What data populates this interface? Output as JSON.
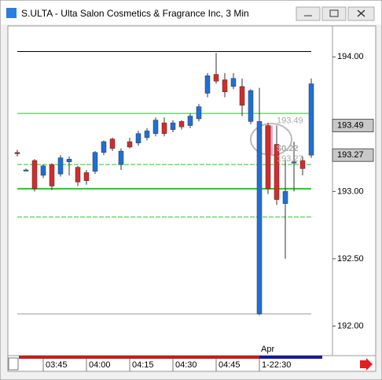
{
  "window_title": "S.ULTA - Ulta Salon Cosmetics & Fragrance Inc, 3 Min",
  "chart_data": {
    "type": "candlestick",
    "categories": [
      null,
      null,
      null,
      "03:45",
      null,
      null,
      null,
      null,
      "04:00",
      null,
      null,
      null,
      null,
      "04:15",
      null,
      null,
      null,
      null,
      "04:30",
      null,
      null,
      null,
      null,
      "04:45",
      null,
      null,
      null,
      null,
      "1-22:30",
      null,
      null,
      null,
      null,
      null,
      null
    ],
    "month_label": "Apr",
    "open": [
      193.29,
      193.16,
      193.23,
      193.12,
      193.2,
      193.13,
      193.22,
      193.18,
      193.14,
      193.15,
      193.29,
      193.39,
      193.2,
      193.37,
      193.36,
      193.4,
      193.43,
      193.51,
      193.46,
      193.52,
      193.49,
      193.54,
      193.73,
      193.87,
      193.83,
      193.78,
      193.78,
      193.52,
      192.09,
      193.49,
      193.35,
      192.91,
      193.22,
      193.23,
      193.27
    ],
    "high": [
      193.31,
      193.17,
      193.24,
      193.2,
      193.21,
      193.27,
      193.26,
      193.19,
      193.16,
      193.3,
      193.38,
      193.4,
      193.32,
      193.4,
      193.45,
      193.47,
      193.55,
      193.55,
      193.53,
      193.53,
      193.58,
      193.65,
      193.88,
      194.03,
      193.88,
      193.88,
      193.84,
      193.76,
      193.77,
      193.51,
      193.49,
      193.25,
      193.37,
      193.26,
      193.84
    ],
    "low": [
      193.26,
      193.15,
      193.0,
      193.1,
      193.01,
      193.11,
      193.12,
      193.04,
      193.05,
      193.13,
      193.27,
      193.3,
      193.16,
      193.32,
      193.34,
      193.38,
      193.41,
      193.41,
      193.44,
      193.46,
      193.47,
      193.52,
      193.7,
      193.8,
      193.7,
      193.76,
      193.56,
      193.5,
      192.08,
      192.98,
      192.9,
      192.5,
      193.0,
      193.12,
      193.25
    ],
    "close": [
      193.28,
      193.16,
      193.02,
      193.19,
      193.04,
      193.25,
      193.24,
      193.07,
      193.08,
      193.29,
      193.37,
      193.32,
      193.3,
      193.33,
      193.43,
      193.45,
      193.53,
      193.43,
      193.51,
      193.48,
      193.56,
      193.63,
      193.86,
      193.82,
      193.74,
      193.84,
      193.64,
      193.75,
      193.52,
      193.02,
      192.94,
      193.0,
      193.22,
      193.17,
      193.8
    ],
    "up_color": "#1e6fd9",
    "down_color": "#d42b2b",
    "ylim": [
      191.78,
      194.23
    ],
    "yticks": [
      {
        "value": 192,
        "label": "192.00"
      },
      {
        "value": 192.5,
        "label": "192.50"
      },
      {
        "value": 193,
        "label": "193.00"
      },
      {
        "value": 194,
        "label": "194.00"
      }
    ],
    "reference_lines": [
      {
        "value": 194.04,
        "color": "#000000",
        "dashed": false
      },
      {
        "value": 193.58,
        "color": "#22cc22",
        "dashed": false
      },
      {
        "value": 193.2,
        "color": "#22cc22",
        "dashed": true
      },
      {
        "value": 193.02,
        "color": "#22cc22",
        "dashed": false
      },
      {
        "value": 192.81,
        "color": "#22cc22",
        "dashed": true
      },
      {
        "value": 192.09,
        "color": "#999999",
        "dashed": false
      }
    ],
    "price_labels": [
      193.49,
      193.27
    ],
    "annotations": [
      "193.49",
      "$0.22",
      "193.27"
    ]
  }
}
